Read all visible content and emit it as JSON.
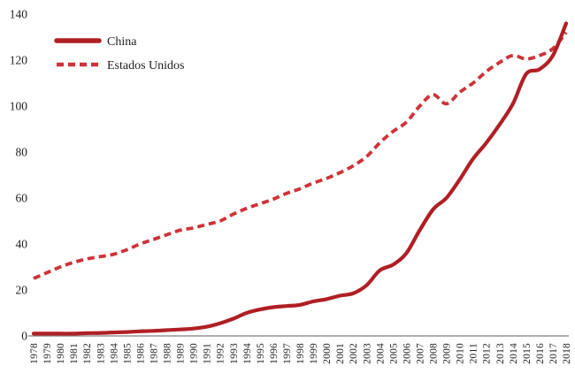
{
  "chart_data": {
    "type": "line",
    "title": "",
    "xlabel": "",
    "ylabel": "",
    "xlim": [
      1978,
      2018
    ],
    "ylim": [
      0,
      140
    ],
    "grid": false,
    "legend_position": "top-left",
    "y_ticks": [
      0,
      20,
      40,
      60,
      80,
      100,
      120,
      140
    ],
    "x": [
      1978,
      1979,
      1980,
      1981,
      1982,
      1983,
      1984,
      1985,
      1986,
      1987,
      1988,
      1989,
      1990,
      1991,
      1992,
      1993,
      1994,
      1995,
      1996,
      1997,
      1998,
      1999,
      2000,
      2001,
      2002,
      2003,
      2004,
      2005,
      2006,
      2007,
      2008,
      2009,
      2010,
      2011,
      2012,
      2013,
      2014,
      2015,
      2016,
      2017,
      2018
    ],
    "series": [
      {
        "name": "China",
        "style": "solid",
        "color": "#b01f24",
        "values": [
          1,
          1,
          1,
          1,
          1.2,
          1.3,
          1.5,
          1.7,
          2,
          2.2,
          2.5,
          2.8,
          3.2,
          4,
          5.5,
          7.5,
          10,
          11.5,
          12.5,
          13,
          13.5,
          15,
          16,
          17.5,
          18.5,
          22,
          28.5,
          31,
          36,
          46,
          55,
          60,
          68,
          77,
          84,
          92,
          101,
          114,
          116,
          122,
          136
        ]
      },
      {
        "name": "Estados Unidos",
        "style": "dashed",
        "color": "#cd3338",
        "values": [
          25,
          27.5,
          30,
          32,
          33.5,
          34.5,
          35.5,
          37.5,
          40,
          42,
          44,
          46,
          47,
          48.5,
          50,
          53,
          55.5,
          57.5,
          59.5,
          62,
          64,
          66.5,
          68.5,
          71,
          74,
          78,
          84,
          89,
          93,
          100,
          105,
          101,
          106,
          110,
          115,
          119,
          122,
          120.5,
          122,
          125,
          132
        ]
      }
    ],
    "colors": {
      "axis": "#7f7f7f",
      "text": "#1f1f1f"
    }
  }
}
